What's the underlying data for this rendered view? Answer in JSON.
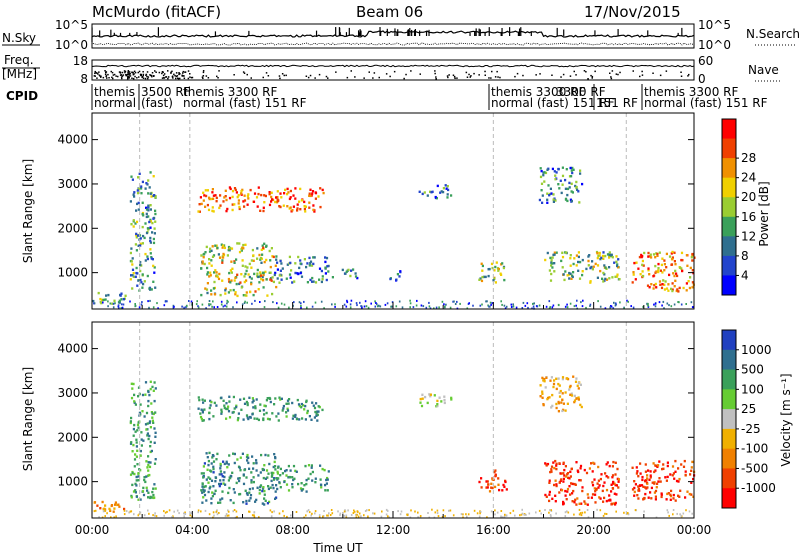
{
  "header": {
    "station": "McMurdo (fitACF)",
    "beam": "Beam 06",
    "date": "17/Nov/2015"
  },
  "strip_labels": {
    "nsky": "N.Sky",
    "nsky_ticks": [
      "10^5",
      "10^0"
    ],
    "nsearch": "N.Search",
    "nsearch_ticks": [
      "10^5",
      "10^0"
    ],
    "freq_line1": "Freq.",
    "freq_line2": "[MHz]",
    "freq_ticks": [
      "18",
      "8"
    ],
    "nave": "Nave",
    "nave_ticks": [
      "60",
      "0"
    ],
    "cpid": "CPID"
  },
  "cpid_blocks": [
    {
      "line1": "themis",
      "line2": "normal"
    },
    {
      "line1": "3500 RF",
      "line2": "(fast)"
    },
    {
      "line1": "themis 3300 RF",
      "line2": "normal (fast) 151 RF"
    },
    {
      "line1": "themis 3300 RF",
      "line2": "normal (fast) 151 RF"
    },
    {
      "line1": "3300 RF",
      "line2": "151 RF"
    },
    {
      "line1": "themis 3300 RF",
      "line2": "normal (fast) 151 RF"
    }
  ],
  "chart_data": [
    {
      "type": "heatmap",
      "name": "Power",
      "ylabel": "Slant Range [km]",
      "xlabel": "",
      "ylim": [
        180,
        4600
      ],
      "yticks": [
        "1000",
        "2000",
        "3000",
        "4000"
      ],
      "xlim_hours": [
        0,
        24
      ],
      "colorbar": {
        "label": "Power [dB]",
        "ticks": [
          "4",
          "8",
          "12",
          "16",
          "20",
          "24",
          "28"
        ],
        "colors": [
          "#0000ff",
          "#2244cc",
          "#2f6f8f",
          "#3aa05a",
          "#9acd32",
          "#f0d000",
          "#f09000",
          "#f04000",
          "#ff0000"
        ]
      },
      "regions": [
        {
          "t": [
            0.0,
            1.3
          ],
          "r": [
            300,
            600
          ],
          "level": 0.4
        },
        {
          "t": [
            1.5,
            2.5
          ],
          "r": [
            600,
            3300
          ],
          "level": 0.35
        },
        {
          "t": [
            4.2,
            9.2
          ],
          "r": [
            2400,
            2950
          ],
          "level": 0.8
        },
        {
          "t": [
            4.3,
            7.3
          ],
          "r": [
            500,
            1700
          ],
          "level": 0.55
        },
        {
          "t": [
            7.2,
            9.4
          ],
          "r": [
            800,
            1400
          ],
          "level": 0.3
        },
        {
          "t": [
            9.5,
            10.7
          ],
          "r": [
            900,
            1100
          ],
          "level": 0.25
        },
        {
          "t": [
            11.8,
            12.3
          ],
          "r": [
            800,
            1100
          ],
          "level": 0.2
        },
        {
          "t": [
            13.0,
            14.3
          ],
          "r": [
            2700,
            3000
          ],
          "level": 0.3
        },
        {
          "t": [
            15.4,
            16.5
          ],
          "r": [
            800,
            1300
          ],
          "level": 0.5
        },
        {
          "t": [
            17.8,
            19.5
          ],
          "r": [
            2600,
            3400
          ],
          "level": 0.3
        },
        {
          "t": [
            18.0,
            21.0
          ],
          "r": [
            800,
            1500
          ],
          "level": 0.45
        },
        {
          "t": [
            21.5,
            24.0
          ],
          "r": [
            600,
            1500
          ],
          "level": 0.75
        }
      ]
    },
    {
      "type": "heatmap",
      "name": "Velocity",
      "ylabel": "Slant Range [km]",
      "xlabel": "Time UT",
      "ylim": [
        180,
        4600
      ],
      "yticks": [
        "1000",
        "2000",
        "3000",
        "4000"
      ],
      "xticks": [
        "00:00",
        "04:00",
        "08:00",
        "12:00",
        "16:00",
        "20:00",
        "00:00"
      ],
      "xlim_hours": [
        0,
        24
      ],
      "colorbar": {
        "label": "Velocity [m s⁻¹]",
        "ticks": [
          "1000",
          "500",
          "100",
          "25",
          "-25",
          "-100",
          "-500",
          "-1000"
        ],
        "colors": [
          "#2040c0",
          "#2f6f8f",
          "#3aa05a",
          "#66cc33",
          "#c0c0c0",
          "#f0b000",
          "#f08000",
          "#f04000",
          "#ff0000"
        ]
      },
      "regions": [
        {
          "t": [
            0.0,
            1.3
          ],
          "r": [
            300,
            600
          ],
          "level": -0.35
        },
        {
          "t": [
            1.5,
            2.5
          ],
          "r": [
            600,
            3300
          ],
          "level": 0.45
        },
        {
          "t": [
            4.2,
            9.2
          ],
          "r": [
            2400,
            2950
          ],
          "level": 0.5
        },
        {
          "t": [
            4.3,
            7.3
          ],
          "r": [
            500,
            1700
          ],
          "level": 0.55
        },
        {
          "t": [
            7.2,
            9.4
          ],
          "r": [
            800,
            1400
          ],
          "level": 0.5
        },
        {
          "t": [
            13.0,
            14.3
          ],
          "r": [
            2700,
            3000
          ],
          "level": 0.1
        },
        {
          "t": [
            15.4,
            16.5
          ],
          "r": [
            800,
            1300
          ],
          "level": -0.7
        },
        {
          "t": [
            17.8,
            19.5
          ],
          "r": [
            2600,
            3400
          ],
          "level": -0.3
        },
        {
          "t": [
            18.0,
            21.0
          ],
          "r": [
            500,
            1500
          ],
          "level": -0.75
        },
        {
          "t": [
            21.5,
            24.0
          ],
          "r": [
            600,
            1500
          ],
          "level": -0.7
        }
      ]
    }
  ]
}
